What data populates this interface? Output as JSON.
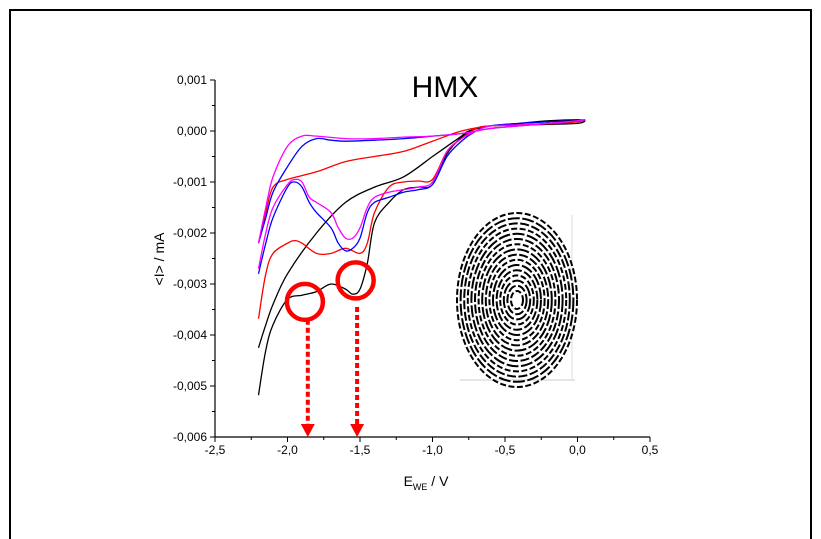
{
  "chart_data": {
    "type": "line",
    "title": "HMX",
    "xlabel_main": "E",
    "xlabel_sub": "WE",
    "xlabel_unit": " / V",
    "ylabel": "<I> / mA",
    "xlim": [
      -2.5,
      0.5
    ],
    "ylim": [
      -0.006,
      0.001
    ],
    "xticks": [
      "-2,5",
      "-2,0",
      "-1,5",
      "-1,0",
      "-0,5",
      "0,0",
      "0,5"
    ],
    "xtick_values": [
      -2.5,
      -2.0,
      -1.5,
      -1.0,
      -0.5,
      0.0,
      0.5
    ],
    "yticks": [
      "0,001",
      "0,000",
      "-0,001",
      "-0,002",
      "-0,003",
      "-0,004",
      "-0,005",
      "-0,006"
    ],
    "ytick_values": [
      0.001,
      0.0,
      -0.001,
      -0.002,
      -0.003,
      -0.004,
      -0.005,
      -0.006
    ],
    "grid": false,
    "series": [
      {
        "color": "#000000",
        "x": [
          -2.2,
          -2.15,
          -2.1,
          -2.0,
          -1.9,
          -1.8,
          -1.7,
          -1.6,
          -1.55,
          -1.5,
          -1.45,
          -1.4,
          -1.3,
          -1.2,
          -1.1,
          -1.0,
          -0.9,
          -0.8,
          -0.7,
          -0.6,
          -0.4,
          -0.2,
          0.0,
          0.05,
          0.0,
          -0.2,
          -0.4,
          -0.6,
          -0.75,
          -0.8,
          -0.9,
          -1.0,
          -1.2,
          -1.4,
          -1.6,
          -1.8,
          -2.0,
          -2.1,
          -2.15,
          -2.2
        ],
        "y": [
          -0.00518,
          -0.0043,
          -0.0038,
          -0.0033,
          -0.00322,
          -0.00315,
          -0.003,
          -0.0031,
          -0.0032,
          -0.0031,
          -0.0026,
          -0.0018,
          -0.0014,
          -0.00115,
          -0.0011,
          -0.00105,
          -0.00045,
          -0.00012,
          5e-05,
          0.0001,
          0.00012,
          0.00013,
          0.00015,
          0.0002,
          0.00022,
          0.0002,
          0.00015,
          0.0001,
          0.0,
          -0.0001,
          -0.0003,
          -0.0005,
          -0.0009,
          -0.0011,
          -0.0014,
          -0.002,
          -0.0028,
          -0.0034,
          -0.0038,
          -0.00425
        ]
      },
      {
        "color": "#ff0000",
        "x": [
          -2.2,
          -2.15,
          -2.1,
          -2.0,
          -1.95,
          -1.9,
          -1.8,
          -1.7,
          -1.6,
          -1.5,
          -1.45,
          -1.4,
          -1.3,
          -1.2,
          -1.1,
          -1.0,
          -0.9,
          -0.8,
          -0.7,
          -0.6,
          -0.4,
          -0.2,
          0.0,
          0.05,
          0.0,
          -0.2,
          -0.4,
          -0.6,
          -0.8,
          -1.0,
          -1.2,
          -1.4,
          -1.6,
          -1.8,
          -2.0,
          -2.1,
          -2.15,
          -2.2
        ],
        "y": [
          -0.00368,
          -0.0028,
          -0.0024,
          -0.0022,
          -0.00215,
          -0.0022,
          -0.0024,
          -0.0024,
          -0.0023,
          -0.0024,
          -0.0022,
          -0.0016,
          -0.0011,
          -0.001,
          -0.00098,
          -0.00095,
          -0.0004,
          -0.00015,
          5e-05,
          0.0001,
          0.00012,
          0.00014,
          0.00018,
          0.00022,
          0.0002,
          0.00015,
          0.00012,
          0.0001,
          0.0,
          -0.0002,
          -0.0004,
          -0.0005,
          -0.0006,
          -0.0008,
          -0.00095,
          -0.0011,
          -0.0016,
          -0.0022
        ]
      },
      {
        "color": "#0000ff",
        "x": [
          -2.2,
          -2.15,
          -2.1,
          -2.0,
          -1.95,
          -1.9,
          -1.85,
          -1.8,
          -1.7,
          -1.65,
          -1.6,
          -1.55,
          -1.5,
          -1.45,
          -1.4,
          -1.3,
          -1.2,
          -1.1,
          -1.0,
          -0.9,
          -0.8,
          -0.7,
          -0.6,
          -0.4,
          -0.2,
          0.0,
          0.05,
          0.0,
          -0.2,
          -0.4,
          -0.6,
          -0.8,
          -1.0,
          -1.2,
          -1.4,
          -1.6,
          -1.7,
          -1.8,
          -1.9,
          -2.0,
          -2.1,
          -2.15,
          -2.2
        ],
        "y": [
          -0.0028,
          -0.0022,
          -0.0017,
          -0.0011,
          -0.001,
          -0.0011,
          -0.0014,
          -0.0016,
          -0.0019,
          -0.0022,
          -0.00235,
          -0.0023,
          -0.0021,
          -0.0016,
          -0.0014,
          -0.0013,
          -0.0012,
          -0.00115,
          -0.00105,
          -0.0005,
          -0.0002,
          0.0,
          0.0001,
          0.00015,
          0.00018,
          0.0002,
          0.00022,
          0.0002,
          0.00015,
          0.0001,
          5e-05,
          -5e-05,
          -0.0001,
          -0.00015,
          -0.00018,
          -0.0002,
          -0.00018,
          -0.00015,
          -0.0003,
          -0.0007,
          -0.0012,
          -0.0017,
          -0.0022
        ]
      },
      {
        "color": "#ff00ff",
        "x": [
          -2.2,
          -2.15,
          -2.1,
          -2.0,
          -1.95,
          -1.9,
          -1.85,
          -1.8,
          -1.7,
          -1.65,
          -1.6,
          -1.55,
          -1.5,
          -1.45,
          -1.4,
          -1.3,
          -1.2,
          -1.1,
          -1.0,
          -0.9,
          -0.8,
          -0.7,
          -0.6,
          -0.4,
          -0.2,
          0.0,
          0.05,
          0.0,
          -0.2,
          -0.4,
          -0.6,
          -0.8,
          -1.0,
          -1.2,
          -1.4,
          -1.6,
          -1.8,
          -1.9,
          -2.0,
          -2.1,
          -2.15,
          -2.2
        ],
        "y": [
          -0.0027,
          -0.002,
          -0.0015,
          -0.00105,
          -0.00095,
          -0.001,
          -0.0013,
          -0.0014,
          -0.0016,
          -0.0019,
          -0.0021,
          -0.0021,
          -0.0019,
          -0.0015,
          -0.0013,
          -0.0012,
          -0.00115,
          -0.0011,
          -0.001,
          -0.0004,
          -0.00015,
          0.0,
          0.0001,
          0.00012,
          0.00015,
          0.0002,
          0.00022,
          0.0002,
          0.00015,
          0.0001,
          5e-05,
          -5e-05,
          -0.0001,
          -0.00012,
          -0.00015,
          -0.00015,
          -0.0001,
          -0.0001,
          -0.0003,
          -0.0009,
          -0.0015,
          -0.0022
        ]
      }
    ],
    "annotations": {
      "circles": [
        {
          "x": -1.88,
          "y": -0.00335,
          "color": "#ff0000"
        },
        {
          "x": -1.53,
          "y": -0.00293,
          "color": "#ff0000"
        }
      ],
      "arrows": [
        {
          "x": -1.86,
          "y_from": -0.0037,
          "y_to": -0.006,
          "color": "#ff0000"
        },
        {
          "x": -1.52,
          "y_from": -0.00345,
          "y_to": -0.006,
          "color": "#ff0000"
        }
      ],
      "inset_image": "fingerprint-image"
    }
  }
}
